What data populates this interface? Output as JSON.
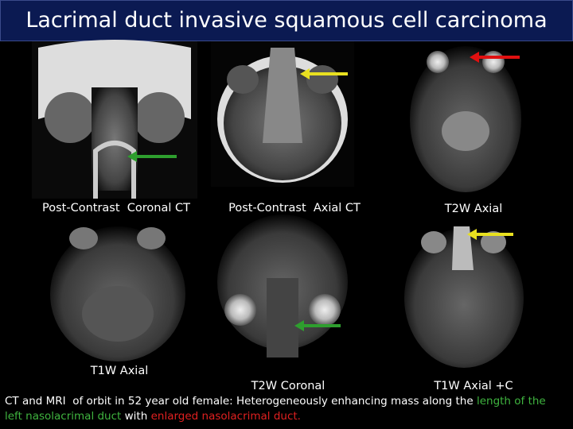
{
  "title": "Lacrimal duct invasive squamous cell carcinoma",
  "images": [
    {
      "label": "Post-Contrast  Coronal CT"
    },
    {
      "label": "Post-Contrast  Axial CT"
    },
    {
      "label": "T2W Axial"
    },
    {
      "label": "T1W Axial"
    },
    {
      "label": "T2W Coronal"
    },
    {
      "label": "T1W Axial +C"
    }
  ],
  "caption": {
    "segments": [
      "CT and MRI  of orbit in 52 year old female: Heterogeneously enhancing mass along the ",
      "length of the left nasolacrimal duct",
      " with ",
      "enlarged nasolacrimal duct."
    ]
  }
}
